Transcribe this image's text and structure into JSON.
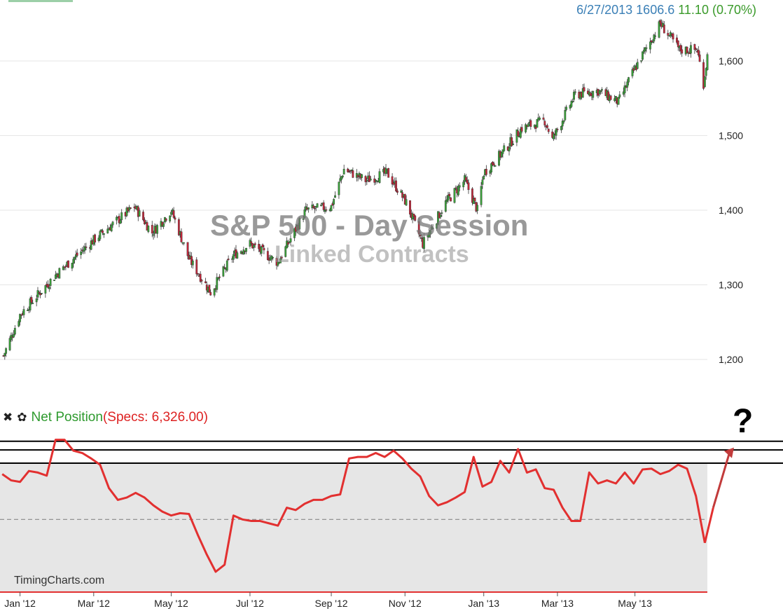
{
  "quote": {
    "date": "6/27/2013",
    "price": "1606.6",
    "change": "11.10 (0.70%)"
  },
  "indicator": {
    "name": "Net Position",
    "value": "(Specs: 6,326.00)",
    "close_icon": "close-icon",
    "settings_icon": "gear-icon"
  },
  "watermark": {
    "line1": "S&P 500 - Day Session",
    "line2": "Linked Contracts"
  },
  "brand": "TimingCharts.com",
  "annotation": {
    "text": "?"
  },
  "colors": {
    "up": "#3aa03a",
    "down": "#c0263a",
    "netline": "#e23030",
    "arrow": "#c23b3b",
    "band": "#e6e6e6"
  },
  "chart_data": [
    {
      "type": "candlestick",
      "title": "S&P 500 - Day Session",
      "y_ticks": [
        "1,200",
        "1,300",
        "1,400",
        "1,500",
        "1,600"
      ],
      "ylim": [
        1190,
        1690
      ],
      "grid": true,
      "trend": {
        "dates": [
          "2011-12-21",
          "2012-01-03",
          "2012-02-01",
          "2012-03-01",
          "2012-04-02",
          "2012-04-16",
          "2012-05-01",
          "2012-05-15",
          "2012-06-01",
          "2012-06-19",
          "2012-07-02",
          "2012-07-24",
          "2012-08-15",
          "2012-09-04",
          "2012-09-14",
          "2012-10-01",
          "2012-10-18",
          "2012-11-02",
          "2012-11-15",
          "2012-12-03",
          "2012-12-18",
          "2012-12-28",
          "2013-01-02",
          "2013-01-18",
          "2013-02-01",
          "2013-02-19",
          "2013-02-25",
          "2013-03-15",
          "2013-04-02",
          "2013-04-18",
          "2013-05-01",
          "2013-05-21",
          "2013-06-05",
          "2013-06-19",
          "2013-06-24",
          "2013-06-27"
        ],
        "close": [
          1205,
          1260,
          1315,
          1360,
          1405,
          1370,
          1400,
          1335,
          1290,
          1340,
          1355,
          1330,
          1400,
          1405,
          1455,
          1440,
          1450,
          1410,
          1355,
          1410,
          1440,
          1400,
          1450,
          1480,
          1510,
          1520,
          1495,
          1555,
          1560,
          1545,
          1590,
          1650,
          1615,
          1615,
          1570,
          1606.6
        ]
      }
    },
    {
      "type": "line",
      "title": "Net Position",
      "series": [
        {
          "name": "Specs",
          "dates": [
            "2011-12-20",
            "2011-12-27",
            "2012-01-03",
            "2012-01-10",
            "2012-01-17",
            "2012-01-24",
            "2012-01-31",
            "2012-02-07",
            "2012-02-14",
            "2012-02-21",
            "2012-02-28",
            "2012-03-06",
            "2012-03-13",
            "2012-03-20",
            "2012-03-27",
            "2012-04-03",
            "2012-04-10",
            "2012-04-17",
            "2012-04-24",
            "2012-05-01",
            "2012-05-08",
            "2012-05-15",
            "2012-05-22",
            "2012-05-29",
            "2012-06-05",
            "2012-06-12",
            "2012-06-19",
            "2012-06-26",
            "2012-07-03",
            "2012-07-10",
            "2012-07-17",
            "2012-07-24",
            "2012-07-31",
            "2012-08-07",
            "2012-08-14",
            "2012-08-21",
            "2012-08-28",
            "2012-09-04",
            "2012-09-11",
            "2012-09-18",
            "2012-09-25",
            "2012-10-02",
            "2012-10-09",
            "2012-10-16",
            "2012-10-23",
            "2012-10-30",
            "2012-11-06",
            "2012-11-13",
            "2012-11-20",
            "2012-11-27",
            "2012-12-04",
            "2012-12-11",
            "2012-12-18",
            "2012-12-25",
            "2013-01-01",
            "2013-01-08",
            "2013-01-15",
            "2013-01-22",
            "2013-01-29",
            "2013-02-05",
            "2013-02-12",
            "2013-02-19",
            "2013-02-26",
            "2013-03-05",
            "2013-03-12",
            "2013-03-19",
            "2013-03-26",
            "2013-04-02",
            "2013-04-09",
            "2013-04-16",
            "2013-04-23",
            "2013-04-30",
            "2013-05-07",
            "2013-05-14",
            "2013-05-21",
            "2013-05-28",
            "2013-06-04",
            "2013-06-11",
            "2013-06-18",
            "2013-06-25"
          ],
          "values": [
            58,
            50,
            48,
            62,
            60,
            56,
            102,
            102,
            88,
            85,
            78,
            70,
            40,
            25,
            28,
            34,
            28,
            18,
            10,
            5,
            8,
            7,
            -20,
            -45,
            -67,
            -58,
            5,
            0,
            -2,
            -2,
            -5,
            -8,
            15,
            12,
            20,
            25,
            25,
            30,
            32,
            78,
            80,
            80,
            85,
            80,
            88,
            78,
            65,
            55,
            30,
            18,
            22,
            28,
            35,
            80,
            42,
            48,
            75,
            60,
            90,
            60,
            64,
            40,
            38,
            15,
            -2,
            -2,
            60,
            46,
            50,
            46,
            60,
            46,
            64,
            65,
            58,
            62,
            70,
            65,
            30,
            -30
          ],
          "projected": [
            -30,
            15,
            92
          ]
        }
      ],
      "y_levels": {
        "dashed_midline": 0,
        "band_top": 72,
        "upper_lines": [
          89,
          100
        ]
      },
      "ylim": [
        -93,
        107
      ]
    }
  ],
  "x_axis": {
    "ticks": [
      "Jan '12",
      "Mar '12",
      "May '12",
      "Jul '12",
      "Sep '12",
      "Nov '12",
      "Jan '13",
      "Mar '13",
      "May '13"
    ]
  }
}
